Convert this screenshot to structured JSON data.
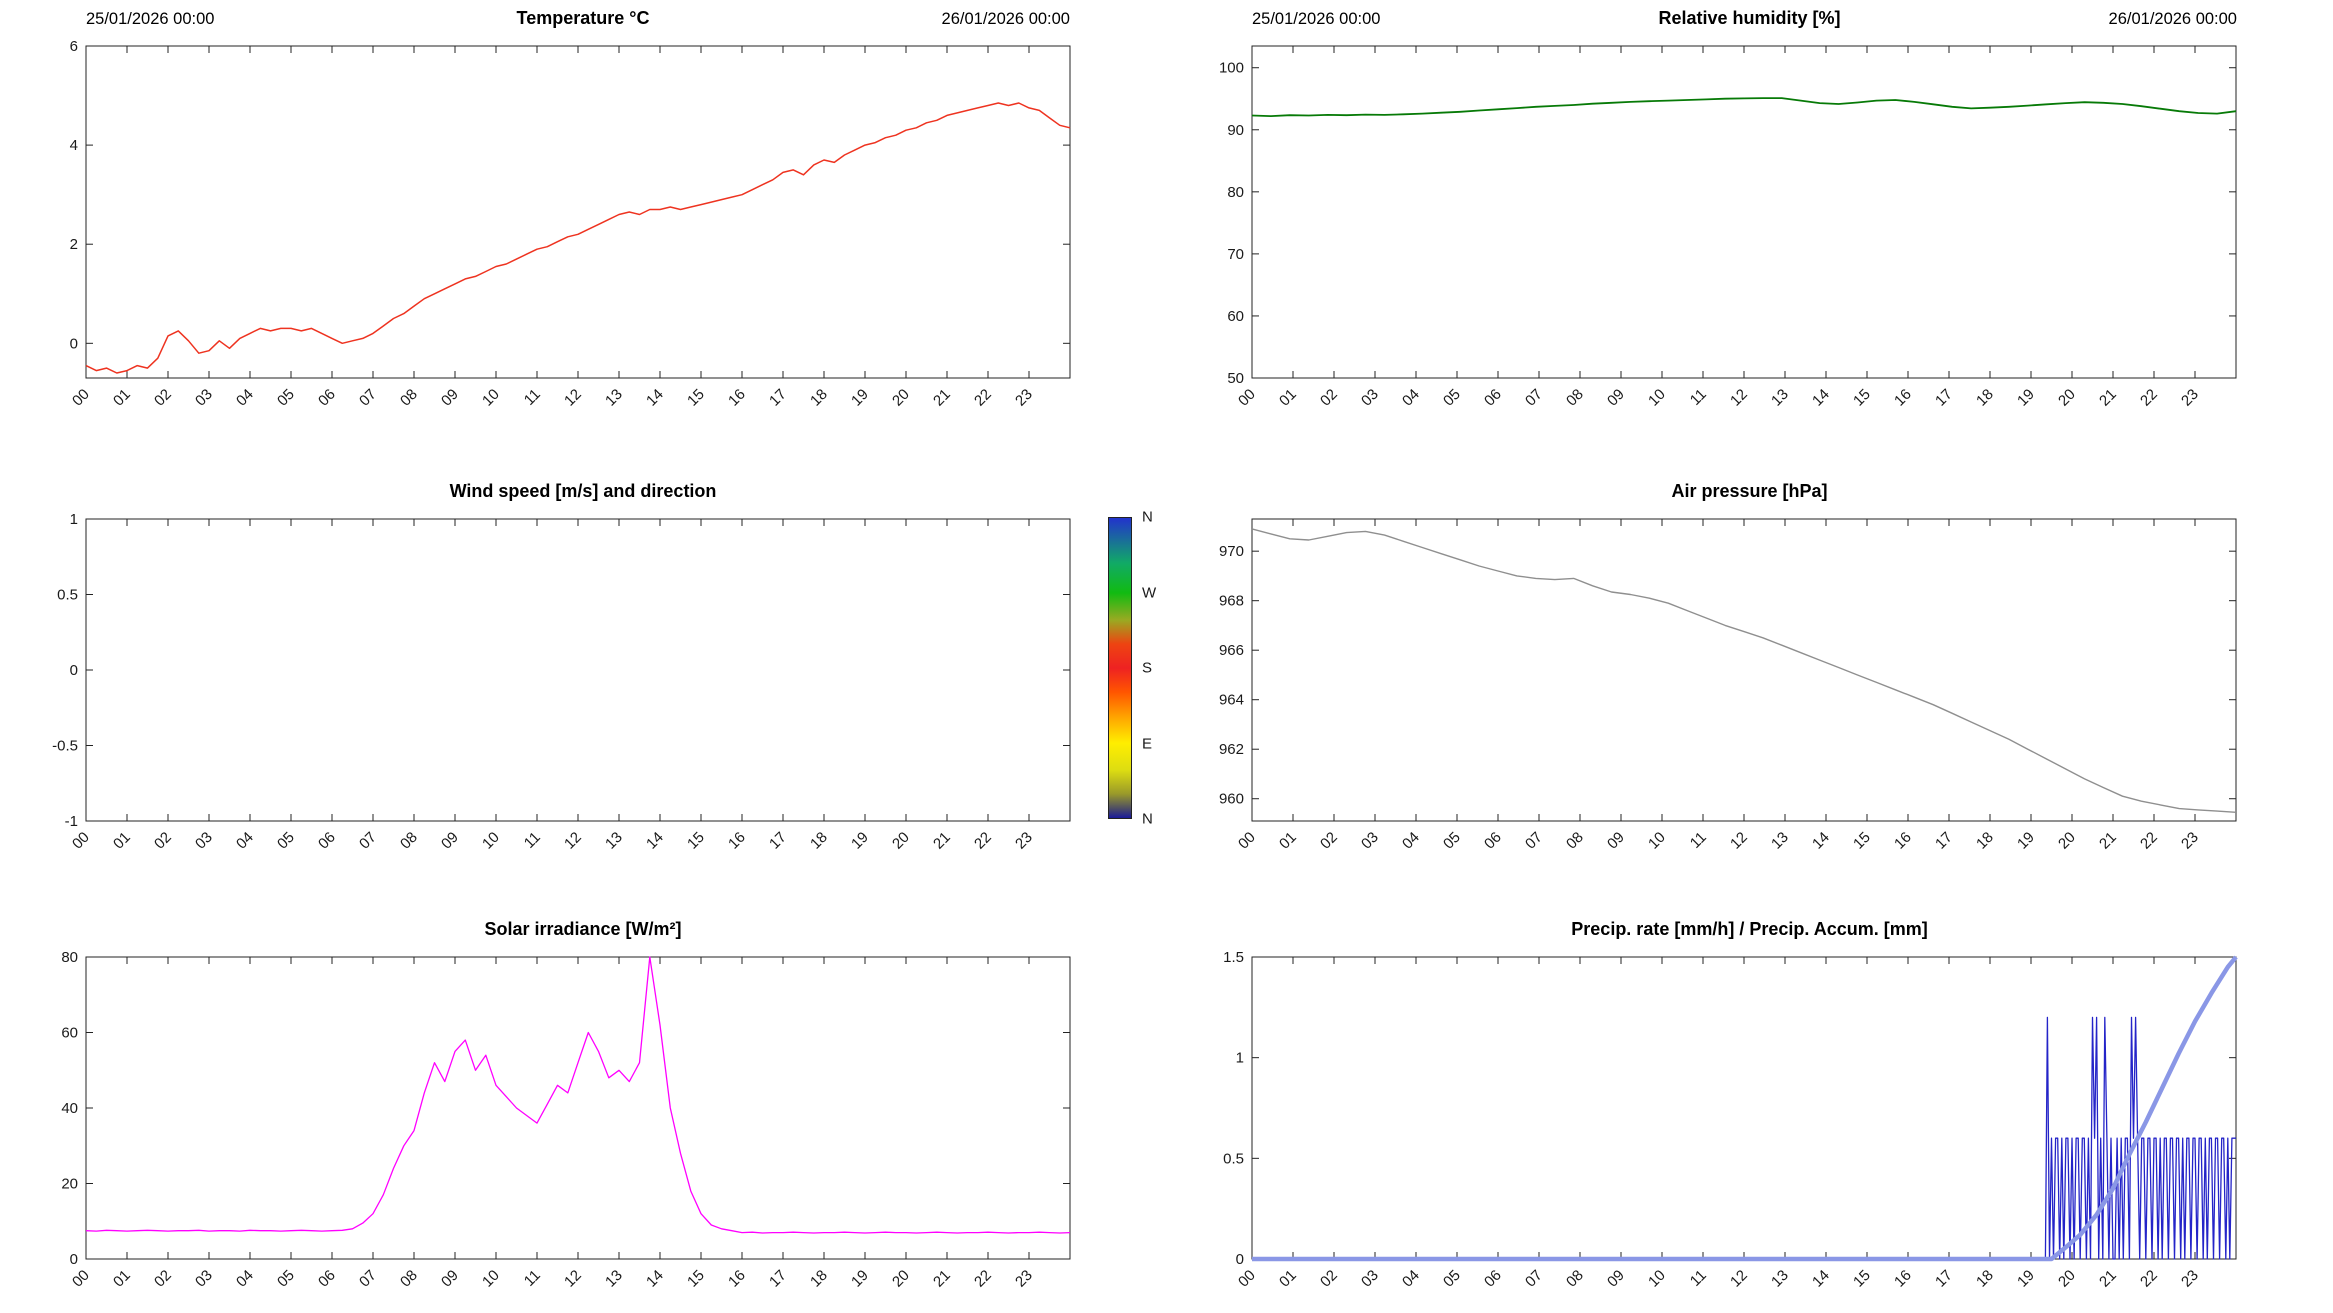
{
  "page": {
    "background": "#ffffff"
  },
  "hour_labels": [
    "00",
    "01",
    "02",
    "03",
    "04",
    "05",
    "06",
    "07",
    "08",
    "09",
    "10",
    "11",
    "12",
    "13",
    "14",
    "15",
    "16",
    "17",
    "18",
    "19",
    "20",
    "21",
    "22",
    "23"
  ],
  "chart_data": [
    {
      "id": "temperature",
      "type": "line",
      "title": "Temperature °C",
      "date_left": "25/01/2026 00:00",
      "date_right": "26/01/2026 00:00",
      "xlim": [
        0,
        24
      ],
      "ylim": [
        -0.7,
        6
      ],
      "ytick_vals": [
        0,
        2,
        4,
        6
      ],
      "ytick_labels": [
        "0",
        "2",
        "4",
        "6"
      ],
      "grid": false,
      "series": [
        {
          "name": "temperature",
          "color": "#ee3320",
          "width": 1.5,
          "y": [
            -0.45,
            -0.55,
            -0.5,
            -0.6,
            -0.55,
            -0.45,
            -0.5,
            -0.3,
            0.15,
            0.25,
            0.05,
            -0.2,
            -0.15,
            0.05,
            -0.1,
            0.1,
            0.2,
            0.3,
            0.25,
            0.3,
            0.3,
            0.25,
            0.3,
            0.2,
            0.1,
            0.0,
            0.05,
            0.1,
            0.2,
            0.35,
            0.5,
            0.6,
            0.75,
            0.9,
            1.0,
            1.1,
            1.2,
            1.3,
            1.35,
            1.45,
            1.55,
            1.6,
            1.7,
            1.8,
            1.9,
            1.95,
            2.05,
            2.15,
            2.2,
            2.3,
            2.4,
            2.5,
            2.6,
            2.65,
            2.6,
            2.7,
            2.7,
            2.75,
            2.7,
            2.75,
            2.8,
            2.85,
            2.9,
            2.95,
            3.0,
            3.1,
            3.2,
            3.3,
            3.45,
            3.5,
            3.4,
            3.6,
            3.7,
            3.65,
            3.8,
            3.9,
            4.0,
            4.05,
            4.15,
            4.2,
            4.3,
            4.35,
            4.45,
            4.5,
            4.6,
            4.65,
            4.7,
            4.75,
            4.8,
            4.85,
            4.8,
            4.85,
            4.75,
            4.7,
            4.55,
            4.4,
            4.35
          ]
        }
      ]
    },
    {
      "id": "humidity",
      "type": "line",
      "title": "Relative humidity [%]",
      "date_left": "25/01/2026 00:00",
      "date_right": "26/01/2026 00:00",
      "xlim": [
        0,
        24
      ],
      "ylim": [
        50,
        103.5
      ],
      "ytick_vals": [
        50,
        60,
        70,
        80,
        90,
        100
      ],
      "ytick_labels": [
        "50",
        "60",
        "70",
        "80",
        "90",
        "100"
      ],
      "grid": false,
      "series": [
        {
          "name": "relative-humidity",
          "color": "#077a07",
          "width": 1.8,
          "y": [
            92.3,
            92.2,
            92.35,
            92.3,
            92.4,
            92.35,
            92.45,
            92.4,
            92.5,
            92.6,
            92.75,
            92.9,
            93.1,
            93.3,
            93.5,
            93.7,
            93.85,
            94.0,
            94.2,
            94.35,
            94.5,
            94.6,
            94.7,
            94.8,
            94.9,
            95.0,
            95.05,
            95.1,
            95.1,
            94.7,
            94.3,
            94.15,
            94.4,
            94.7,
            94.8,
            94.5,
            94.1,
            93.7,
            93.45,
            93.55,
            93.7,
            93.9,
            94.1,
            94.3,
            94.45,
            94.35,
            94.15,
            93.8,
            93.4,
            93.0,
            92.7,
            92.6,
            93.0
          ]
        }
      ]
    },
    {
      "id": "wind",
      "type": "line",
      "title": "Wind speed [m/s] and direction",
      "xlim": [
        0,
        24
      ],
      "ylim": [
        -1,
        1
      ],
      "ytick_vals": [
        -1,
        -0.5,
        0,
        0.5,
        1
      ],
      "ytick_labels": [
        "-1",
        "-0.5",
        "0",
        "0.5",
        "1"
      ],
      "grid": false,
      "series": [],
      "colorbar": {
        "labels": [
          "N",
          "W",
          "S",
          "E",
          "N"
        ],
        "gradient_stops": [
          {
            "pos": 0.0,
            "color": "#1a1a99"
          },
          {
            "pos": 0.03,
            "color": "#4a4a66"
          },
          {
            "pos": 0.08,
            "color": "#99992a"
          },
          {
            "pos": 0.16,
            "color": "#dddd11"
          },
          {
            "pos": 0.25,
            "color": "#ffee00"
          },
          {
            "pos": 0.33,
            "color": "#ffaa00"
          },
          {
            "pos": 0.42,
            "color": "#ff5500"
          },
          {
            "pos": 0.5,
            "color": "#ee2222"
          },
          {
            "pos": 0.58,
            "color": "#ee4411"
          },
          {
            "pos": 0.66,
            "color": "#99aa22"
          },
          {
            "pos": 0.75,
            "color": "#11bb11"
          },
          {
            "pos": 0.85,
            "color": "#11aa66"
          },
          {
            "pos": 1.0,
            "color": "#2233cc"
          }
        ]
      }
    },
    {
      "id": "pressure",
      "type": "line",
      "title": "Air pressure [hPa]",
      "xlim": [
        0,
        24
      ],
      "ylim": [
        959.1,
        971.3
      ],
      "ytick_vals": [
        960,
        962,
        964,
        966,
        968,
        970
      ],
      "ytick_labels": [
        "960",
        "962",
        "964",
        "966",
        "968",
        "970"
      ],
      "grid": false,
      "series": [
        {
          "name": "air-pressure",
          "color": "#8f8f8f",
          "width": 1.4,
          "y": [
            970.9,
            970.7,
            970.5,
            970.45,
            970.6,
            970.75,
            970.8,
            970.65,
            970.4,
            970.15,
            969.9,
            969.65,
            969.4,
            969.2,
            969.0,
            968.9,
            968.85,
            968.9,
            968.6,
            968.35,
            968.25,
            968.1,
            967.9,
            967.6,
            967.3,
            967.0,
            966.75,
            966.5,
            966.2,
            965.9,
            965.6,
            965.3,
            965.0,
            964.7,
            964.4,
            964.1,
            963.8,
            963.45,
            963.1,
            962.75,
            962.4,
            962.0,
            961.6,
            961.2,
            960.8,
            960.45,
            960.1,
            959.9,
            959.75,
            959.6,
            959.55,
            959.5,
            959.45
          ]
        }
      ]
    },
    {
      "id": "solar",
      "type": "line",
      "title": "Solar irradiance [W/m²]",
      "xlim": [
        0,
        24
      ],
      "ylim": [
        0,
        80
      ],
      "ytick_vals": [
        0,
        20,
        40,
        60,
        80
      ],
      "ytick_labels": [
        "0",
        "20",
        "40",
        "60",
        "80"
      ],
      "grid": false,
      "series": [
        {
          "name": "solar-irradiance",
          "color": "#ff00ff",
          "width": 1.3,
          "y": [
            7.5,
            7.4,
            7.6,
            7.5,
            7.4,
            7.5,
            7.6,
            7.5,
            7.4,
            7.5,
            7.5,
            7.6,
            7.4,
            7.5,
            7.5,
            7.4,
            7.6,
            7.5,
            7.5,
            7.4,
            7.5,
            7.6,
            7.5,
            7.4,
            7.5,
            7.6,
            8.0,
            9.5,
            12,
            17,
            24,
            30,
            34,
            44,
            52,
            47,
            55,
            58,
            50,
            54,
            46,
            43,
            40,
            38,
            36,
            41,
            46,
            44,
            52,
            60,
            55,
            48,
            50,
            47,
            52,
            80,
            62,
            40,
            28,
            18,
            12,
            9,
            8,
            7.5,
            7,
            7.1,
            6.9,
            7,
            7,
            7.1,
            7,
            6.9,
            7,
            7,
            7.1,
            7,
            6.9,
            7,
            7.1,
            7,
            7,
            6.9,
            7,
            7.1,
            7,
            6.9,
            7,
            7,
            7.1,
            7,
            6.9,
            7,
            7,
            7.1,
            7,
            6.9,
            7
          ]
        }
      ]
    },
    {
      "id": "precipitation",
      "type": "line",
      "title": "Precip. rate [mm/h] / Precip. Accum. [mm]",
      "xlim": [
        0,
        24
      ],
      "ylim": [
        0,
        1.5
      ],
      "ytick_vals": [
        0,
        0.5,
        1,
        1.5
      ],
      "ytick_labels": [
        "0",
        "0.5",
        "1",
        "1.5"
      ],
      "grid": false,
      "series": [
        {
          "name": "precip-rate-baseline",
          "color": "#2424c8",
          "width": 1.3,
          "x": [
            0,
            19.35
          ],
          "y": [
            0,
            0
          ]
        },
        {
          "name": "precip-rate",
          "color": "#2424c8",
          "width": 1.3,
          "x_start": 19.35,
          "x_step": 0.05,
          "y": [
            0,
            1.2,
            0,
            0.6,
            0,
            0.6,
            0.6,
            0,
            0.6,
            0,
            0.6,
            0.6,
            0,
            0.6,
            0,
            0.6,
            0.6,
            0,
            0.6,
            0.6,
            0,
            0.6,
            0,
            1.2,
            0.6,
            1.2,
            0,
            0.6,
            0,
            1.2,
            0.6,
            0,
            0.6,
            0,
            0,
            0.6,
            0,
            0.6,
            0,
            0.6,
            0.6,
            0,
            1.2,
            0.6,
            1.2,
            0.6,
            0,
            0.6,
            0.6,
            0,
            0.6,
            0.6,
            0,
            0.6,
            0.6,
            0,
            0.6,
            0,
            0.6,
            0.6,
            0,
            0.6,
            0.6,
            0,
            0.6,
            0.6,
            0,
            0.6,
            0,
            0.6,
            0.6,
            0,
            0.6,
            0.6,
            0,
            0.6,
            0.6,
            0,
            0.6,
            0,
            0.6,
            0.6,
            0,
            0.6,
            0.6,
            0,
            0.6,
            0.6,
            0,
            0.6,
            0,
            0.6,
            0.6,
            0.6
          ]
        },
        {
          "name": "precip-accumulation",
          "color": "#8a97e6",
          "width": 4.5,
          "x": [
            0,
            19.5,
            19.8,
            20.2,
            20.6,
            21.0,
            21.4,
            21.8,
            22.2,
            22.6,
            23.0,
            23.4,
            23.8,
            24.0
          ],
          "y": [
            0,
            0,
            0.05,
            0.12,
            0.22,
            0.35,
            0.52,
            0.68,
            0.85,
            1.02,
            1.18,
            1.32,
            1.45,
            1.5
          ]
        }
      ]
    }
  ]
}
